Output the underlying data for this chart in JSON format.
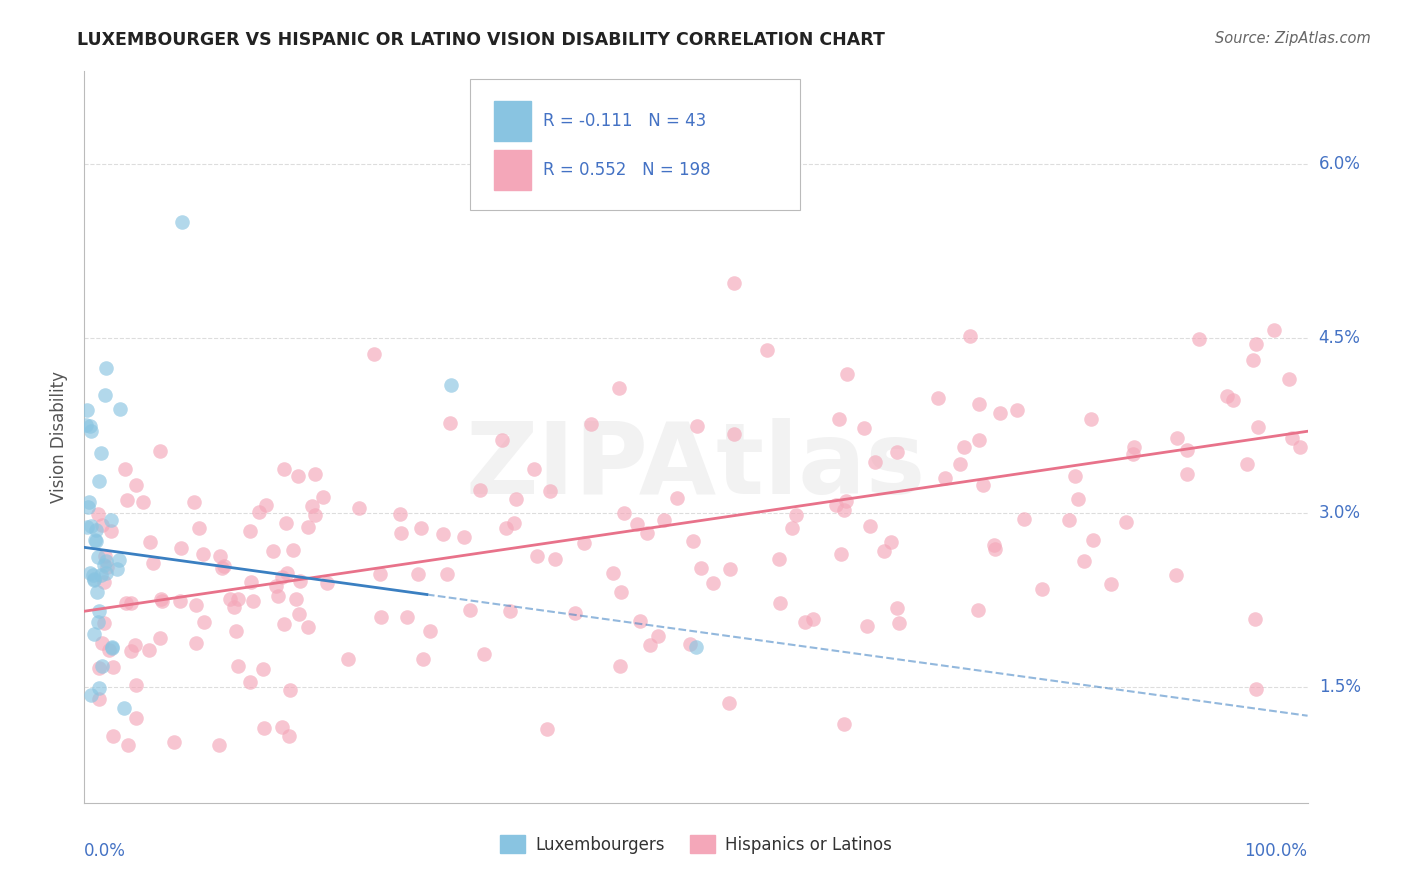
{
  "title": "LUXEMBOURGER VS HISPANIC OR LATINO VISION DISABILITY CORRELATION CHART",
  "source": "Source: ZipAtlas.com",
  "ylabel": "Vision Disability",
  "blue_color": "#89c4e1",
  "pink_color": "#f4a7b9",
  "blue_line_color": "#3a7fc1",
  "pink_line_color": "#e8728a",
  "legend_blue_r": "-0.111",
  "legend_blue_n": "43",
  "legend_pink_r": "0.552",
  "legend_pink_n": "198",
  "ytick_labels": [
    "1.5%",
    "3.0%",
    "4.5%",
    "6.0%"
  ],
  "ytick_vals": [
    0.015,
    0.03,
    0.045,
    0.06
  ],
  "xlim": [
    0.0,
    1.0
  ],
  "ylim": [
    0.005,
    0.068
  ],
  "blue_intercept": 0.027,
  "blue_slope": -0.0145,
  "pink_intercept": 0.0215,
  "pink_slope": 0.0155,
  "watermark_text": "ZIPAtlas",
  "background_color": "#ffffff",
  "grid_color": "#dddddd",
  "title_color": "#222222",
  "source_color": "#666666",
  "tick_label_color": "#4472c4",
  "ylabel_color": "#555555"
}
